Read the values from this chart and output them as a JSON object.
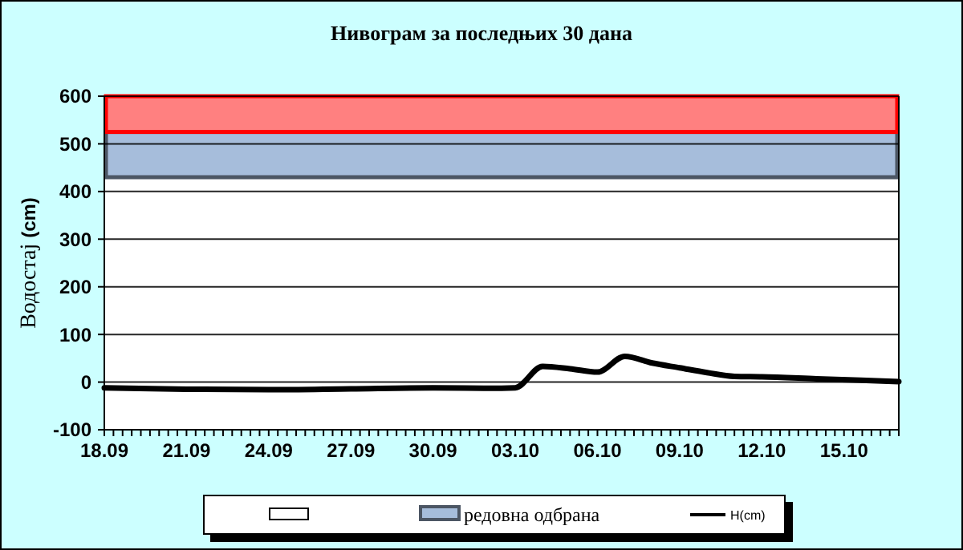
{
  "chart_data": {
    "type": "line",
    "title": "Нивограм за последњих 30 дана",
    "ylabel": "Водостај (cm)",
    "x": [
      "--09-18",
      "--09-21",
      "--09-24",
      "--09-27",
      "--09-30",
      "--10-02",
      "--10-03",
      "--10-04",
      "--10-05",
      "--10-06",
      "--10-07",
      "--10-08",
      "--10-09",
      "--10-10",
      "--10-11",
      "--10-12",
      "--10-14",
      "--10-17"
    ],
    "series": [
      {
        "name": "H(cm)",
        "color": "#000000",
        "values": [
          -12,
          -15,
          -16,
          -14,
          -12,
          -13,
          -12,
          33,
          28,
          21,
          54,
          40,
          30,
          20,
          12,
          11,
          7,
          1
        ]
      }
    ],
    "xlim": [
      "--09-18",
      "--10-17"
    ],
    "xticks": [
      {
        "value": "--09-18",
        "label": "18.09"
      },
      {
        "value": "--09-21",
        "label": "21.09"
      },
      {
        "value": "--09-24",
        "label": "24.09"
      },
      {
        "value": "--09-27",
        "label": "27.09"
      },
      {
        "value": "--09-30",
        "label": "30.09"
      },
      {
        "value": "--10-03",
        "label": "03.10"
      },
      {
        "value": "--10-06",
        "label": "06.10"
      },
      {
        "value": "--10-09",
        "label": "09.10"
      },
      {
        "value": "--10-12",
        "label": "12.10"
      },
      {
        "value": "--10-15",
        "label": "15.10"
      }
    ],
    "ylim": [
      -100,
      600
    ],
    "yticks": [
      -100,
      0,
      100,
      200,
      300,
      400,
      500,
      600
    ],
    "bands": [
      {
        "axis": "y",
        "from": 430,
        "to": 525,
        "label": "редовна одбрана",
        "color": "#a6bddb"
      },
      {
        "axis": "y",
        "from": 525,
        "to": 600,
        "color": "#ff8080"
      }
    ],
    "grid": "y",
    "legend": "bottom",
    "marker": "none",
    "line_style": "solid"
  }
}
